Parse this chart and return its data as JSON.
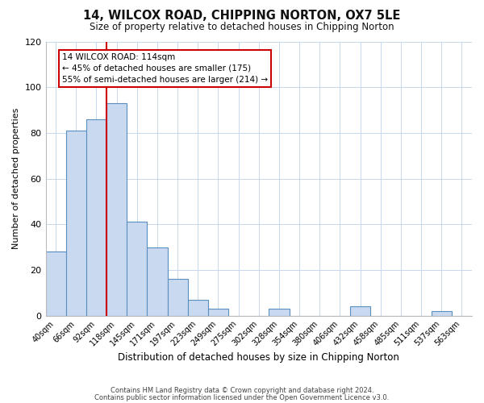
{
  "title": "14, WILCOX ROAD, CHIPPING NORTON, OX7 5LE",
  "subtitle": "Size of property relative to detached houses in Chipping Norton",
  "xlabel": "Distribution of detached houses by size in Chipping Norton",
  "ylabel": "Number of detached properties",
  "bar_labels": [
    "40sqm",
    "66sqm",
    "92sqm",
    "118sqm",
    "145sqm",
    "171sqm",
    "197sqm",
    "223sqm",
    "249sqm",
    "275sqm",
    "302sqm",
    "328sqm",
    "354sqm",
    "380sqm",
    "406sqm",
    "432sqm",
    "458sqm",
    "485sqm",
    "511sqm",
    "537sqm",
    "563sqm"
  ],
  "bar_values": [
    28,
    81,
    86,
    93,
    41,
    30,
    16,
    7,
    3,
    0,
    0,
    3,
    0,
    0,
    0,
    4,
    0,
    0,
    0,
    2,
    0
  ],
  "bar_color": "#c9d9f0",
  "bar_edge_color": "#5a8fc2",
  "ylim": [
    0,
    120
  ],
  "yticks": [
    0,
    20,
    40,
    60,
    80,
    100,
    120
  ],
  "vline_index": 3,
  "vline_color": "#cc0000",
  "annotation_title": "14 WILCOX ROAD: 114sqm",
  "annotation_line1": "← 45% of detached houses are smaller (175)",
  "annotation_line2": "55% of semi-detached houses are larger (214) →",
  "annotation_box_color": "#cc0000",
  "footer_line1": "Contains HM Land Registry data © Crown copyright and database right 2024.",
  "footer_line2": "Contains public sector information licensed under the Open Government Licence v3.0.",
  "background_color": "#ffffff",
  "grid_color": "#c8d8ec"
}
